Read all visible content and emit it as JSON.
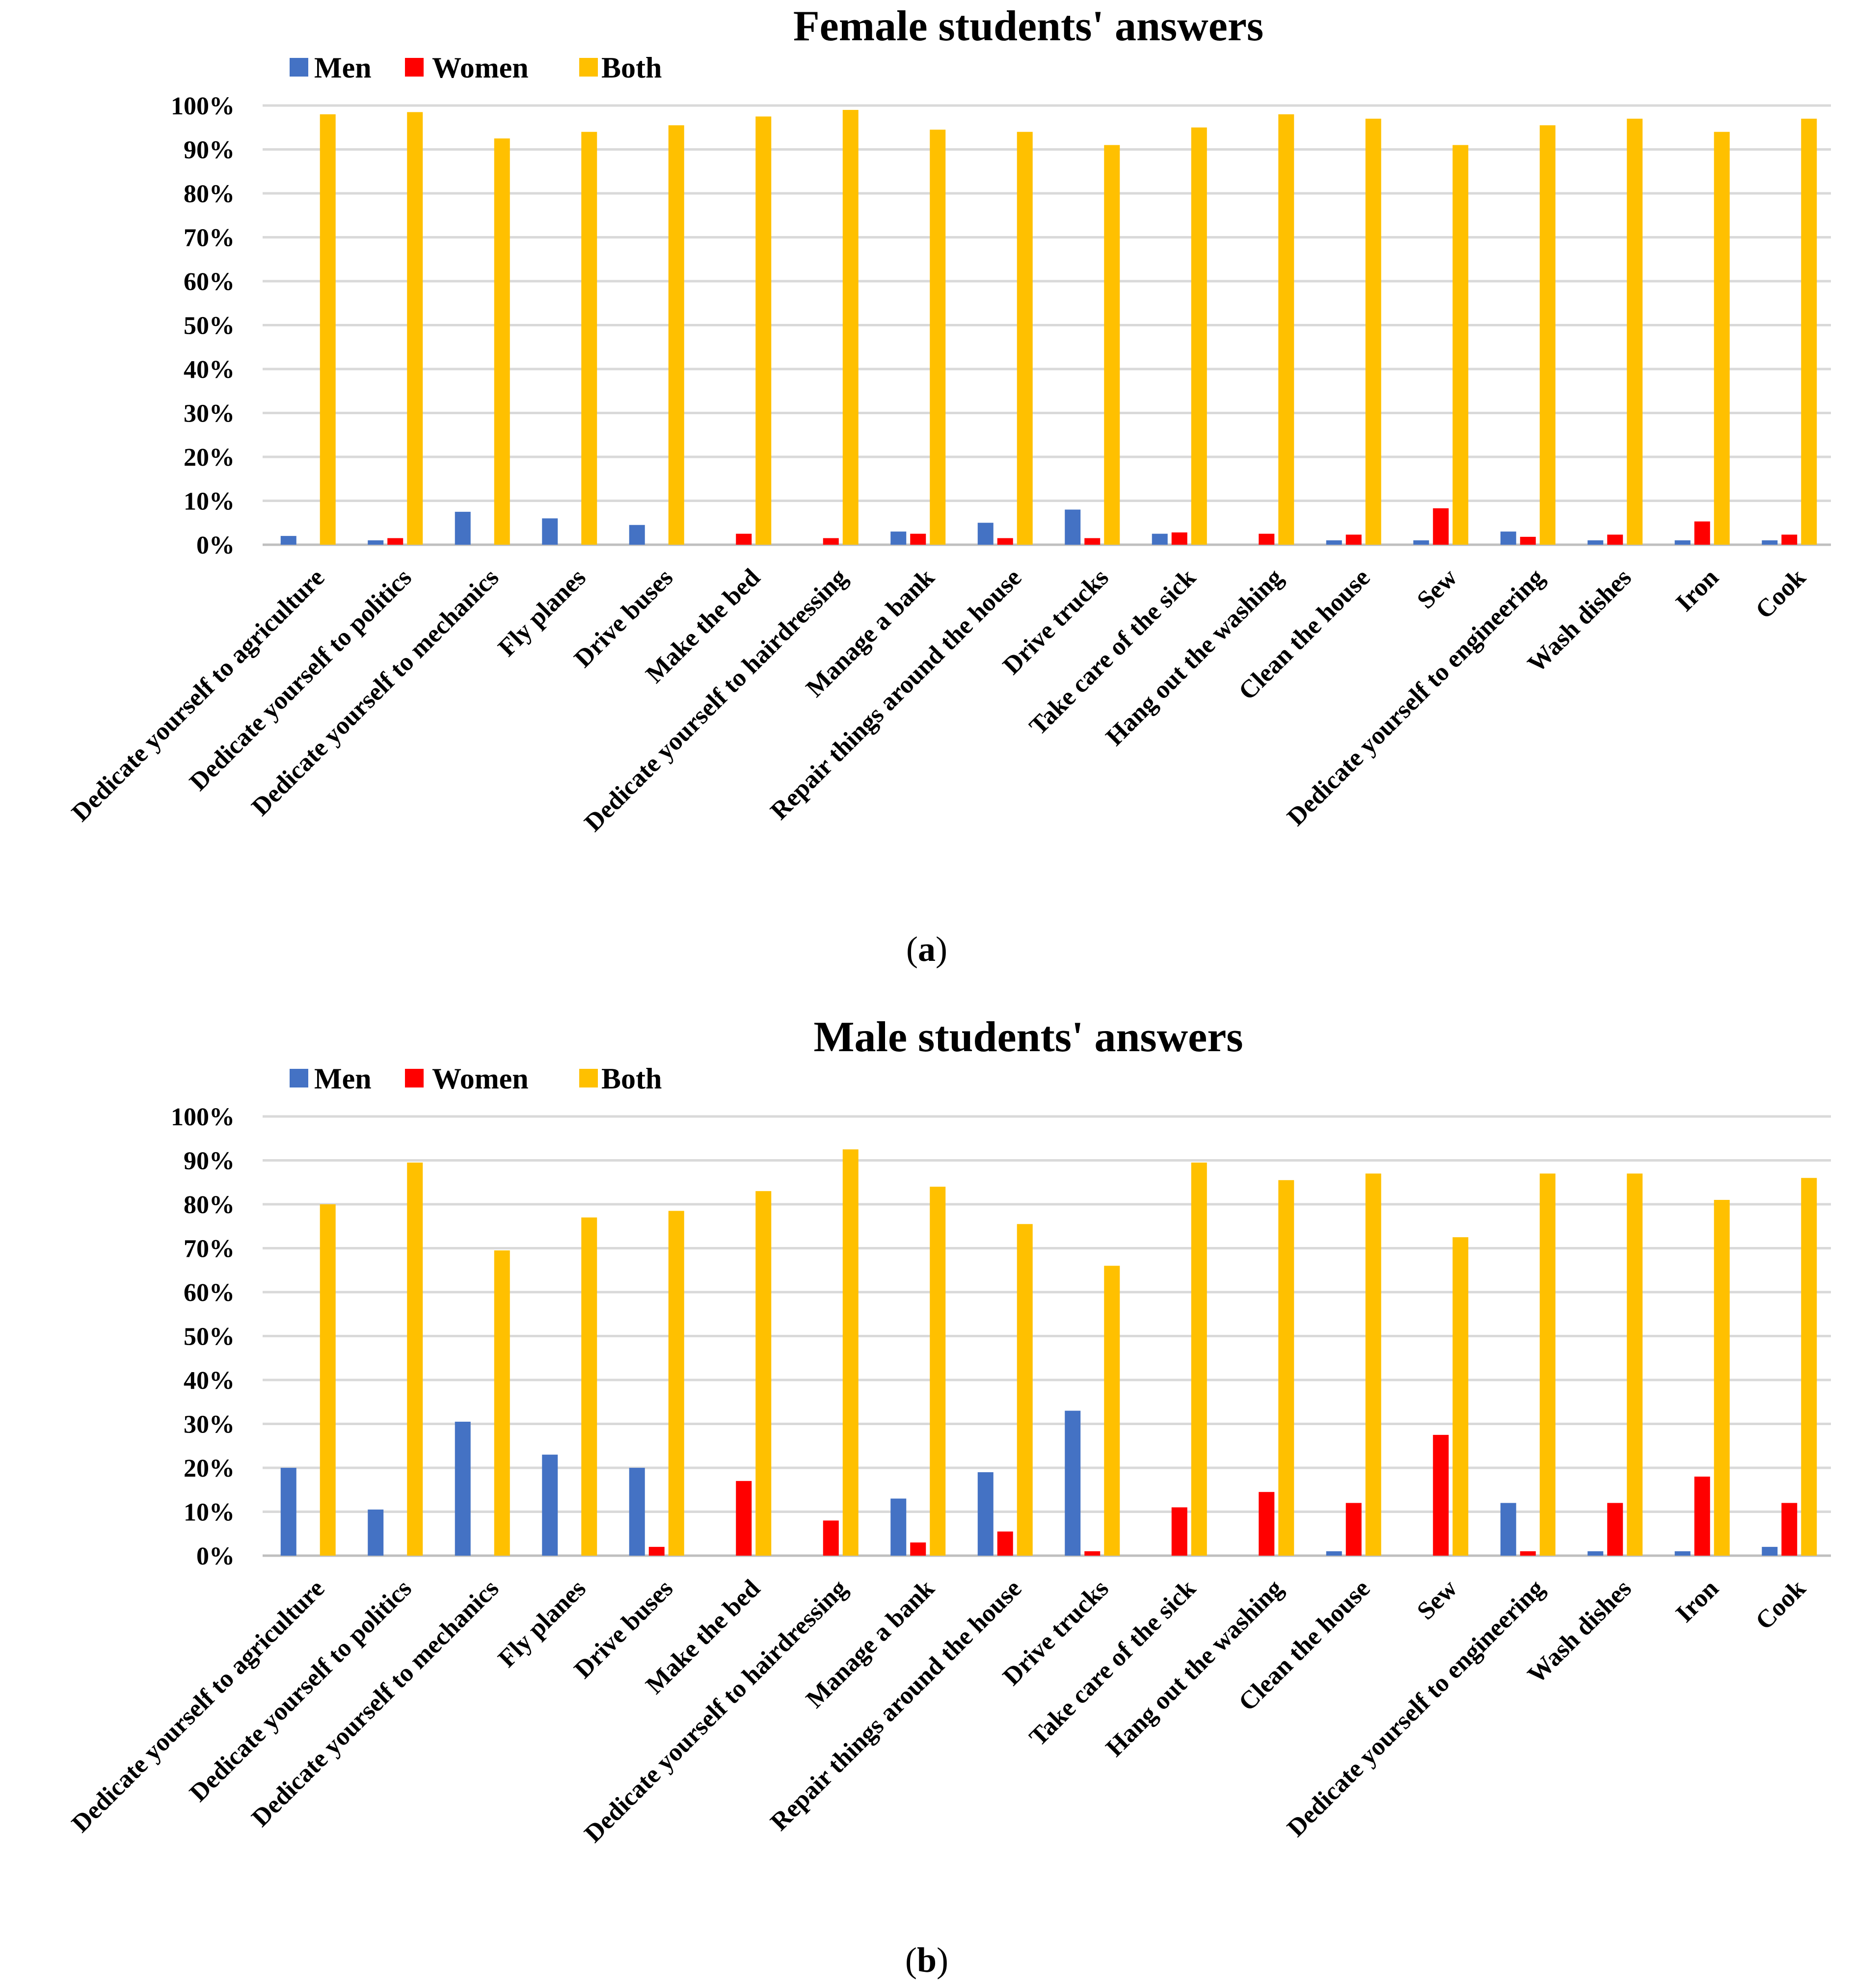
{
  "chart_data": [
    {
      "type": "bar",
      "panel": "(a)",
      "panel_letter": "a",
      "title": "Female students' answers",
      "categories": [
        "Dedicate yourself to agriculture",
        "Dedicate yourself to politics",
        "Dedicate yourself to mechanics",
        "Fly planes",
        "Drive buses",
        "Make the bed",
        "Dedicate yourself to hairdressing",
        "Manage a bank",
        "Repair things around the house",
        "Drive trucks",
        "Take care of the sick",
        "Hang out the washing",
        "Clean the house",
        "Sew",
        "Dedicate yourself to engineering",
        "Wash dishes",
        "Iron",
        "Cook"
      ],
      "series": [
        {
          "name": "Men",
          "color": "#4472C4",
          "values": [
            2,
            1,
            7.5,
            6,
            4.5,
            0,
            0,
            3,
            5,
            8,
            2.5,
            0,
            1,
            1,
            3,
            1,
            1,
            1
          ]
        },
        {
          "name": "Women",
          "color": "#FF0000",
          "values": [
            0,
            1.5,
            0,
            0,
            0,
            2.5,
            1.5,
            2.5,
            1.5,
            1.5,
            2.8,
            2.5,
            2.3,
            8.3,
            1.8,
            2.3,
            5.3,
            2.3
          ]
        },
        {
          "name": "Both",
          "color": "#FFC000",
          "values": [
            98,
            98.5,
            92.5,
            94,
            95.5,
            97.5,
            99,
            94.5,
            94,
            91,
            95,
            98,
            97,
            91,
            95.5,
            97,
            94,
            97
          ]
        }
      ],
      "yticks": [
        "0%",
        "10%",
        "20%",
        "30%",
        "40%",
        "50%",
        "60%",
        "70%",
        "80%",
        "90%",
        "100%"
      ],
      "ylim": [
        0,
        100
      ],
      "grid": true,
      "legend": "top-left"
    },
    {
      "type": "bar",
      "panel": "(b)",
      "panel_letter": "b",
      "title": "Male students' answers",
      "categories": [
        "Dedicate yourself to agriculture",
        "Dedicate yourself to politics",
        "Dedicate yourself to mechanics",
        "Fly planes",
        "Drive buses",
        "Make the bed",
        "Dedicate yourself to hairdressing",
        "Manage a bank",
        "Repair things around the house",
        "Drive trucks",
        "Take care of the sick",
        "Hang out the washing",
        "Clean the house",
        "Sew",
        "Dedicate yourself to engineering",
        "Wash dishes",
        "Iron",
        "Cook"
      ],
      "series": [
        {
          "name": "Men",
          "color": "#4472C4",
          "values": [
            20,
            10.5,
            30.5,
            23,
            20,
            0,
            0,
            13,
            19,
            33,
            0,
            0,
            1,
            0,
            12,
            1,
            1,
            2
          ]
        },
        {
          "name": "Women",
          "color": "#FF0000",
          "values": [
            0,
            0,
            0,
            0,
            2,
            17,
            8,
            3,
            5.5,
            1,
            11,
            14.5,
            12,
            27.5,
            1,
            12,
            18,
            12
          ]
        },
        {
          "name": "Both",
          "color": "#FFC000",
          "values": [
            80,
            89.5,
            69.5,
            77,
            78.5,
            83,
            92.5,
            84,
            75.5,
            66,
            89.5,
            85.5,
            87,
            72.5,
            87,
            87,
            81,
            86
          ]
        }
      ],
      "yticks": [
        "0%",
        "10%",
        "20%",
        "30%",
        "40%",
        "50%",
        "60%",
        "70%",
        "80%",
        "90%",
        "100%"
      ],
      "ylim": [
        0,
        100
      ],
      "grid": true,
      "legend": "top-left"
    }
  ]
}
